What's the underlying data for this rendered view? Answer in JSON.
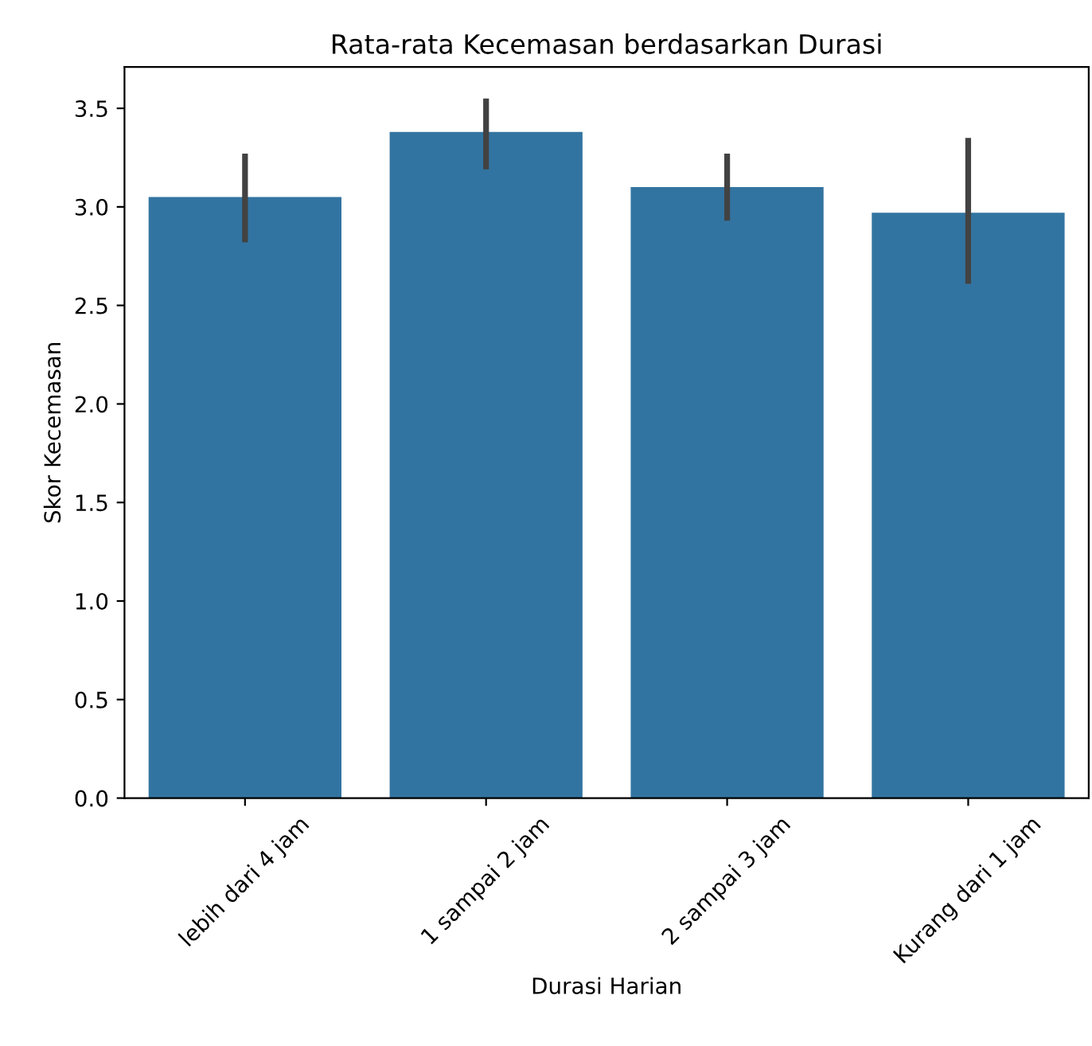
{
  "chart_data": {
    "type": "bar",
    "title": "Rata-rata Kecemasan berdasarkan Durasi",
    "xlabel": "Durasi Harian",
    "ylabel": "Skor Kecemasan",
    "categories": [
      "lebih dari 4 jam",
      "1 sampai 2 jam",
      "2 sampai 3 jam",
      "Kurang dari 1 jam"
    ],
    "values": [
      3.05,
      3.38,
      3.1,
      2.97
    ],
    "errors": [
      [
        2.82,
        3.27
      ],
      [
        3.19,
        3.55
      ],
      [
        2.93,
        3.27
      ],
      [
        2.61,
        3.35
      ]
    ],
    "color": "#3274a1",
    "ylim": [
      0,
      3.71
    ],
    "yticks": [
      {
        "value": 0,
        "label": "0.0"
      },
      {
        "value": 0.5,
        "label": "0.5"
      },
      {
        "value": 1,
        "label": "1.0"
      },
      {
        "value": 1.5,
        "label": "1.5"
      },
      {
        "value": 2,
        "label": "2.0"
      },
      {
        "value": 2.5,
        "label": "2.5"
      },
      {
        "value": 3,
        "label": "3.0"
      },
      {
        "value": 3.5,
        "label": "3.5"
      }
    ],
    "grid": false
  }
}
